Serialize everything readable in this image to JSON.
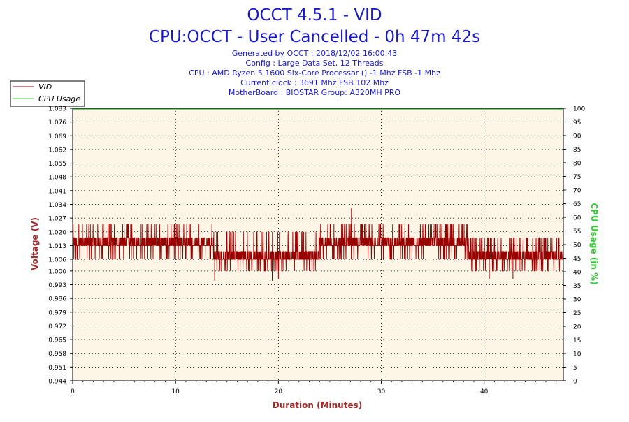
{
  "chart_data": {
    "type": "line",
    "title": "OCCT 4.5.1 - VID",
    "subtitle": "CPU:OCCT - User Cancelled - 0h 47m 42s",
    "info_lines": [
      "Generated by OCCT : 2018/12/02 16:00:43",
      "Config : Large Data Set, 12 Threads",
      "CPU : AMD Ryzen 5 1600 Six-Core Processor () -1 Mhz FSB -1 Mhz",
      "Current clock : 3691 Mhz FSB 102 Mhz",
      "MotherBoard : BIOSTAR Group: A320MH PRO"
    ],
    "xlabel": "Duration (Minutes)",
    "ylabel": "Voltage (V)",
    "y2label": "CPU Usage (in %)",
    "xlim": [
      0,
      47.7
    ],
    "ylim": [
      0.944,
      1.083
    ],
    "y2lim": [
      0,
      100
    ],
    "x_ticks": [
      "0",
      "10",
      "20",
      "30",
      "40"
    ],
    "x_tick_values": [
      0,
      10,
      20,
      30,
      40
    ],
    "y_ticks": [
      "0.944",
      "0.951",
      "0.958",
      "0.965",
      "0.972",
      "0.979",
      "0.986",
      "0.993",
      "1.000",
      "1.006",
      "1.013",
      "1.020",
      "1.027",
      "1.034",
      "1.041",
      "1.048",
      "1.055",
      "1.062",
      "1.069",
      "1.076",
      "1.083"
    ],
    "y_tick_values": [
      0.944,
      0.951,
      0.958,
      0.965,
      0.972,
      0.979,
      0.986,
      0.993,
      1.0,
      1.006,
      1.013,
      1.02,
      1.027,
      1.034,
      1.041,
      1.048,
      1.055,
      1.062,
      1.069,
      1.076,
      1.083
    ],
    "y2_ticks": [
      "0",
      "5",
      "10",
      "15",
      "20",
      "25",
      "30",
      "35",
      "40",
      "45",
      "50",
      "55",
      "60",
      "65",
      "70",
      "75",
      "80",
      "85",
      "90",
      "95",
      "100"
    ],
    "grid": true,
    "legend_position": "top-left",
    "series": [
      {
        "name": "VID",
        "axis": "left",
        "color": "#990000",
        "segments": [
          {
            "x_start": 0.0,
            "x_end": 13.7,
            "y_main": 1.013,
            "y_alt": 1.017,
            "y_low": 1.006,
            "y_high": 1.024
          },
          {
            "x_start": 13.7,
            "x_end": 24.0,
            "y_main": 1.006,
            "y_alt": 1.01,
            "y_low": 1.0,
            "y_high": 1.02
          },
          {
            "x_start": 24.0,
            "x_end": 38.5,
            "y_main": 1.013,
            "y_alt": 1.017,
            "y_low": 1.006,
            "y_high": 1.024
          },
          {
            "x_start": 38.5,
            "x_end": 47.7,
            "y_main": 1.006,
            "y_alt": 1.01,
            "y_low": 1.0,
            "y_high": 1.017
          }
        ],
        "spikes": [
          {
            "x": 13.8,
            "y": 0.995
          },
          {
            "x": 19.4,
            "y": 0.995
          },
          {
            "x": 20.0,
            "y": 0.996
          },
          {
            "x": 27.1,
            "y": 1.032
          },
          {
            "x": 40.5,
            "y": 0.996
          },
          {
            "x": 42.8,
            "y": 0.996
          }
        ]
      },
      {
        "name": "CPU Usage",
        "axis": "right",
        "color": "#33cc33",
        "x": [
          0,
          47.7
        ],
        "y": [
          100,
          100
        ]
      }
    ]
  }
}
